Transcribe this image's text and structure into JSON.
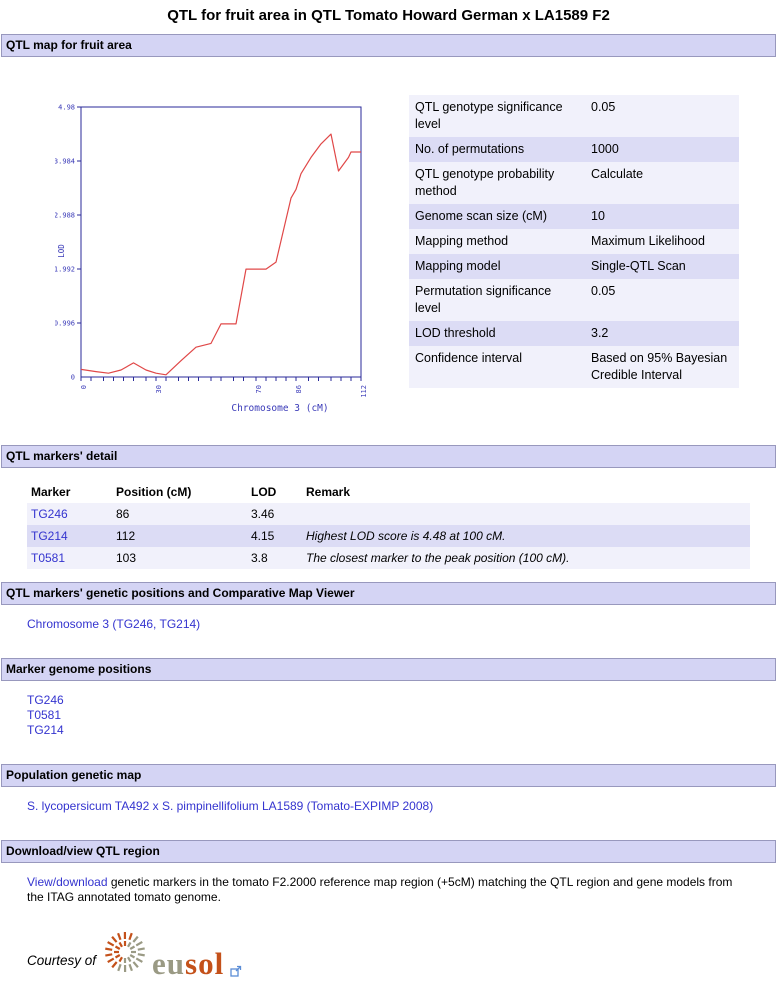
{
  "page_title": "QTL for fruit area in QTL Tomato Howard German x LA1589 F2",
  "section_titles": {
    "map": "QTL map for fruit area",
    "markers_detail": "QTL markers' detail",
    "comparative": "QTL markers' genetic positions and Comparative Map Viewer",
    "genome_positions": "Marker genome positions",
    "population_map": "Population genetic map",
    "download": "Download/view QTL region"
  },
  "chart_data": {
    "type": "line",
    "title": "",
    "xlabel": "Chromosome 3 (cM)",
    "ylabel": "LOD",
    "xlim": [
      0,
      112
    ],
    "ylim": [
      0,
      4.98
    ],
    "y_ticks": [
      0,
      0.996,
      1.992,
      2.988,
      3.984,
      4.98
    ],
    "y_tick_labels": [
      "0",
      "0.996",
      "1.992",
      "2.988",
      "3.984",
      "4.98"
    ],
    "x_ticks_labeled": [
      0,
      30,
      70,
      86,
      112
    ],
    "x_ticks_minor": [
      0,
      4,
      9,
      13,
      17,
      21,
      26,
      30,
      34,
      39,
      43,
      47,
      52,
      56,
      61,
      65,
      70,
      74,
      78,
      82,
      86,
      91,
      95,
      100,
      104,
      108,
      112
    ],
    "grid": false,
    "legend": "none",
    "axis_color": "#2a2a99",
    "label_color": "#3a3ab8",
    "series": [
      {
        "name": "LOD score",
        "color": "#e04848",
        "points": [
          [
            0,
            0.14
          ],
          [
            6,
            0.1
          ],
          [
            11,
            0.07
          ],
          [
            16,
            0.13
          ],
          [
            21,
            0.26
          ],
          [
            26,
            0.13
          ],
          [
            30,
            0.07
          ],
          [
            34,
            0.04
          ],
          [
            40,
            0.3
          ],
          [
            46,
            0.55
          ],
          [
            52,
            0.62
          ],
          [
            56,
            0.98
          ],
          [
            62,
            0.98
          ],
          [
            66,
            1.99
          ],
          [
            74,
            1.99
          ],
          [
            78,
            2.12
          ],
          [
            84,
            3.3
          ],
          [
            86,
            3.46
          ],
          [
            88,
            3.75
          ],
          [
            92,
            4.05
          ],
          [
            96,
            4.3
          ],
          [
            100,
            4.48
          ],
          [
            103,
            3.8
          ],
          [
            107,
            4.05
          ],
          [
            108,
            4.15
          ],
          [
            112,
            4.15
          ]
        ]
      }
    ],
    "annotations": [
      "Highest LOD 4.48 at 100 cM",
      "LOD threshold 3.2"
    ]
  },
  "qtl_params": {
    "rows": [
      {
        "label": "QTL genotype significance level",
        "value": "0.05"
      },
      {
        "label": "No. of permutations",
        "value": "1000"
      },
      {
        "label": "QTL genotype probability method",
        "value": "Calculate"
      },
      {
        "label": "Genome scan size (cM)",
        "value": "10"
      },
      {
        "label": "Mapping method",
        "value": "Maximum Likelihood"
      },
      {
        "label": "Mapping model",
        "value": "Single-QTL Scan"
      },
      {
        "label": "Permutation significance level",
        "value": "0.05"
      },
      {
        "label": "LOD threshold",
        "value": "3.2"
      },
      {
        "label": "Confidence interval",
        "value": "Based on 95% Bayesian Credible Interval"
      }
    ]
  },
  "markers_table": {
    "headers": [
      "Marker",
      "Position (cM)",
      "LOD",
      "Remark"
    ],
    "rows": [
      {
        "marker": "TG246",
        "position": "86",
        "lod": "3.46",
        "remark": ""
      },
      {
        "marker": "TG214",
        "position": "112",
        "lod": "4.15",
        "remark": "Highest LOD score is 4.48 at 100 cM."
      },
      {
        "marker": "T0581",
        "position": "103",
        "lod": "3.8",
        "remark": "The closest marker to the peak position (100 cM)."
      }
    ]
  },
  "comparative": {
    "link_text": "Chromosome 3 (TG246, TG214)"
  },
  "genome_positions": {
    "links": [
      "TG246",
      "T0581",
      "TG214"
    ]
  },
  "population_map": {
    "link_text": "S. lycopersicum TA492 x S. pimpinellifolium LA1589 (Tomato-EXPIMP 2008)"
  },
  "download": {
    "link_text": "View/download",
    "text_after": " genetic markers in the tomato F2.2000 reference map region (+5cM) matching the QTL region and gene models from the ITAG annotated tomato genome."
  },
  "footer": {
    "courtesy_label": "Courtesy of",
    "logo_eu": "eu",
    "logo_sol": "sol"
  },
  "colors": {
    "section_bar_bg": "#d4d4f4",
    "section_bar_border": "#9898bd",
    "row_light": "#f1f1fb",
    "row_dark": "#dcdcf5",
    "link": "#3434cf",
    "chart_line": "#e04848",
    "chart_axis": "#2a2a99",
    "logo_eu_color": "#9a9a84",
    "logo_sol_color": "#c4511a"
  }
}
